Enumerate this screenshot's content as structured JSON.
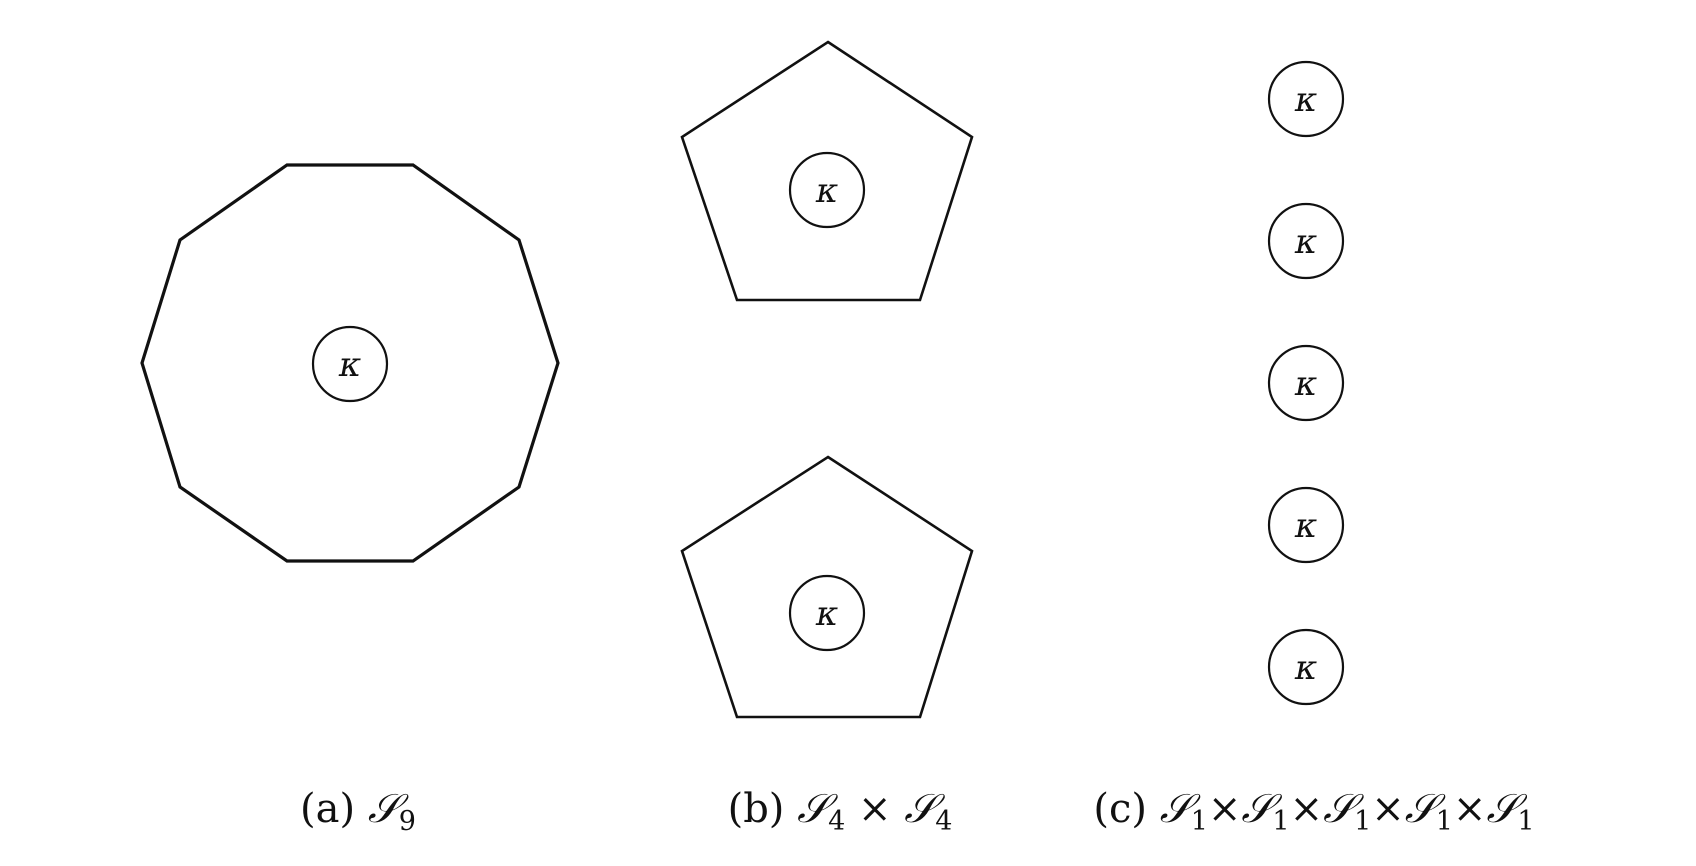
{
  "node_label": "κ",
  "panels": [
    {
      "id": "a",
      "caption_prefix": "(a)",
      "caption_terms": [
        {
          "symbol": "𝒮",
          "sub": "9"
        }
      ],
      "caption_separator": "×",
      "polygons": [
        {
          "sides": 10
        }
      ],
      "nodes": 1
    },
    {
      "id": "b",
      "caption_prefix": "(b)",
      "caption_terms": [
        {
          "symbol": "𝒮",
          "sub": "4"
        },
        {
          "symbol": "𝒮",
          "sub": "4"
        }
      ],
      "caption_separator": "×",
      "polygons": [
        {
          "sides": 5
        },
        {
          "sides": 5
        }
      ],
      "nodes": 2
    },
    {
      "id": "c",
      "caption_prefix": "(c)",
      "caption_terms": [
        {
          "symbol": "𝒮",
          "sub": "1"
        },
        {
          "symbol": "𝒮",
          "sub": "1"
        },
        {
          "symbol": "𝒮",
          "sub": "1"
        },
        {
          "symbol": "𝒮",
          "sub": "1"
        },
        {
          "symbol": "𝒮",
          "sub": "1"
        }
      ],
      "caption_separator": "×",
      "polygons": [],
      "nodes": 5
    }
  ]
}
